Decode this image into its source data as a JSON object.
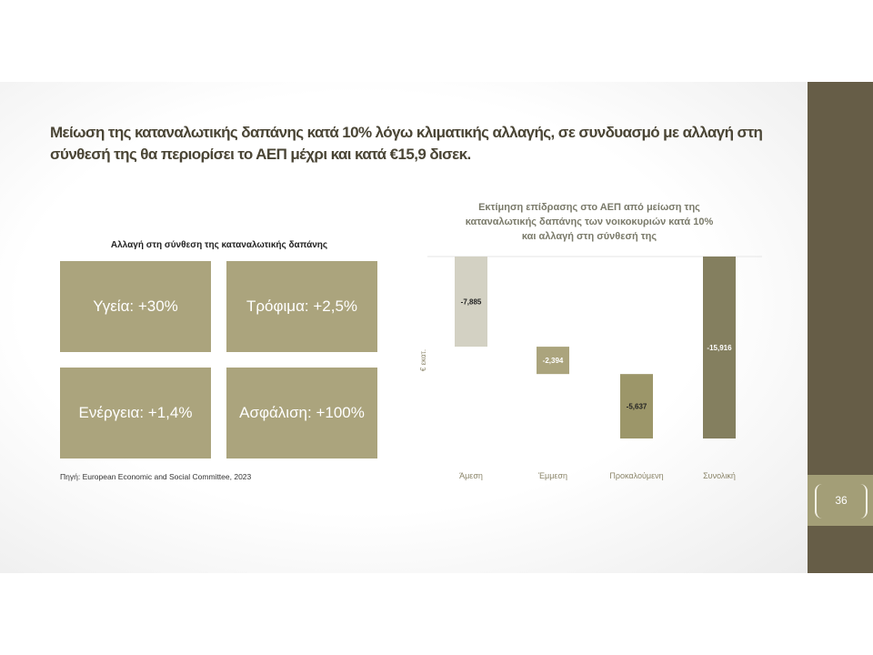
{
  "title": "Μείωση της καταναλωτικής δαπάνης κατά 10% λόγω κλιματικής αλλαγής, σε συνδυασμό με αλλαγή στη σύνθεσή της θα περιορίσει το ΑΕΠ μέχρι και κατά €15,9 δισεκ.",
  "composition": {
    "title": "Αλλαγή στη σύνθεση της καταναλωτικής δαπάνης",
    "tiles": [
      {
        "label": "Υγεία: +30%"
      },
      {
        "label": "Τρόφιμα: +2,5%"
      },
      {
        "label": "Ενέργεια: +1,4%"
      },
      {
        "label": "Ασφάλιση: +100%"
      }
    ],
    "source": "Πηγή: European Economic and Social Committee, 2023"
  },
  "page_number": "36",
  "colors": {
    "sidebar": "#665d47",
    "tile": "#aba47d",
    "bar_direct": "#d3d1c3",
    "bar_indirect": "#aba47d",
    "bar_induced": "#9c9669",
    "bar_total": "#847f5f"
  },
  "chart_data": {
    "type": "bar",
    "subtype": "waterfall",
    "title_lines": [
      "Εκτίμηση επίδρασης στο ΑΕΠ από μείωση της",
      "καταναλωτικής δαπάνης των νοικοκυριών κατά 10%",
      "και αλλαγή στη σύνθεσή της"
    ],
    "ylabel": "€ εκατ.",
    "categories": [
      "Άμεση",
      "Έμμεση",
      "Προκαλούμενη",
      "Συνολική"
    ],
    "values": [
      -7885,
      -2394,
      -5637,
      -15916
    ],
    "data_labels": [
      "-7,885",
      "-2,394",
      "-5,637",
      "-15,916"
    ],
    "ylim": [
      -15916,
      0
    ],
    "grid": false
  }
}
